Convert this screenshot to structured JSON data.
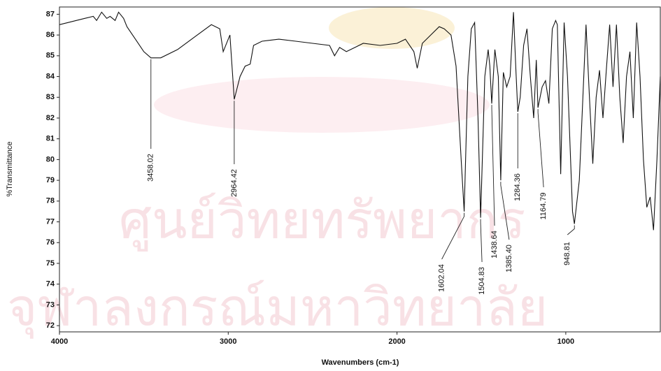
{
  "chart_data": {
    "type": "line",
    "x_label": "Wavenumbers (cm-1)",
    "y_label": "%Transmittance",
    "watermark": [
      "ศูนย์วิทยทรัพยากร",
      "จุฬาลงกรณ์มหาวิทยาลัย"
    ],
    "color": "#111111",
    "xlim": [
      4000,
      440
    ],
    "ylim": [
      71.7,
      87.35
    ],
    "xticks": [
      4000,
      3000,
      2000,
      1000
    ],
    "yticks": [
      72,
      73,
      74,
      75,
      76,
      77,
      78,
      79,
      80,
      81,
      82,
      83,
      84,
      85,
      86,
      87
    ],
    "x": [
      4000,
      3950,
      3900,
      3850,
      3800,
      3780,
      3750,
      3720,
      3700,
      3670,
      3650,
      3620,
      3600,
      3550,
      3500,
      3458.02,
      3400,
      3300,
      3200,
      3100,
      3050,
      3030,
      2990,
      2964.42,
      2930,
      2900,
      2870,
      2850,
      2800,
      2700,
      2600,
      2500,
      2400,
      2370,
      2340,
      2300,
      2200,
      2100,
      2000,
      1950,
      1900,
      1880,
      1850,
      1800,
      1750,
      1720,
      1680,
      1650,
      1620,
      1602.04,
      1580,
      1560,
      1540,
      1520,
      1504.83,
      1480,
      1460,
      1450,
      1438.64,
      1420,
      1400,
      1385.4,
      1370,
      1350,
      1330,
      1310,
      1295,
      1284.36,
      1270,
      1250,
      1230,
      1210,
      1190,
      1175,
      1164.79,
      1140,
      1120,
      1100,
      1080,
      1060,
      1050,
      1030,
      1010,
      990,
      960,
      948.81,
      920,
      880,
      860,
      840,
      820,
      800,
      780,
      760,
      740,
      720,
      700,
      680,
      660,
      640,
      620,
      600,
      580,
      560,
      540,
      520,
      500,
      480,
      460,
      440
    ],
    "values": [
      86.5,
      86.6,
      86.7,
      86.8,
      86.9,
      86.7,
      87.1,
      86.8,
      86.9,
      86.7,
      87.1,
      86.8,
      86.4,
      85.8,
      85.2,
      84.9,
      84.9,
      85.3,
      85.9,
      86.5,
      86.3,
      85.2,
      86.0,
      82.9,
      84.0,
      84.5,
      84.6,
      85.5,
      85.7,
      85.8,
      85.7,
      85.6,
      85.5,
      85.0,
      85.4,
      85.2,
      85.6,
      85.5,
      85.6,
      85.8,
      85.2,
      84.4,
      85.6,
      86.0,
      86.4,
      86.3,
      86.0,
      84.5,
      80.0,
      77.5,
      84.0,
      86.3,
      86.6,
      82.0,
      77.2,
      84.0,
      85.3,
      84.5,
      82.7,
      85.3,
      84.0,
      79.0,
      84.2,
      83.5,
      84.0,
      87.1,
      84.2,
      82.3,
      83.0,
      85.5,
      86.3,
      84.0,
      82.0,
      84.8,
      82.5,
      83.5,
      83.8,
      82.7,
      86.3,
      86.7,
      86.5,
      79.3,
      86.6,
      84.0,
      77.5,
      76.9,
      79.0,
      86.5,
      83.0,
      79.8,
      83.0,
      84.3,
      82.0,
      84.3,
      86.5,
      83.5,
      86.5,
      83.0,
      80.8,
      84.0,
      85.2,
      82.0,
      86.6,
      84.0,
      80.0,
      77.7,
      78.2,
      76.6,
      80.0,
      84.0
    ],
    "annotations": [
      {
        "x": 3458.02,
        "label": "3458.02"
      },
      {
        "x": 2964.42,
        "label": "2964.42"
      },
      {
        "x": 1602.04,
        "label": "1602.04"
      },
      {
        "x": 1504.83,
        "label": "1504.83"
      },
      {
        "x": 1438.64,
        "label": "1438.64"
      },
      {
        "x": 1385.4,
        "label": "1385.40"
      },
      {
        "x": 1284.36,
        "label": "1284.36"
      },
      {
        "x": 1164.79,
        "label": "1164.79"
      },
      {
        "x": 948.81,
        "label": "948.81"
      }
    ]
  }
}
